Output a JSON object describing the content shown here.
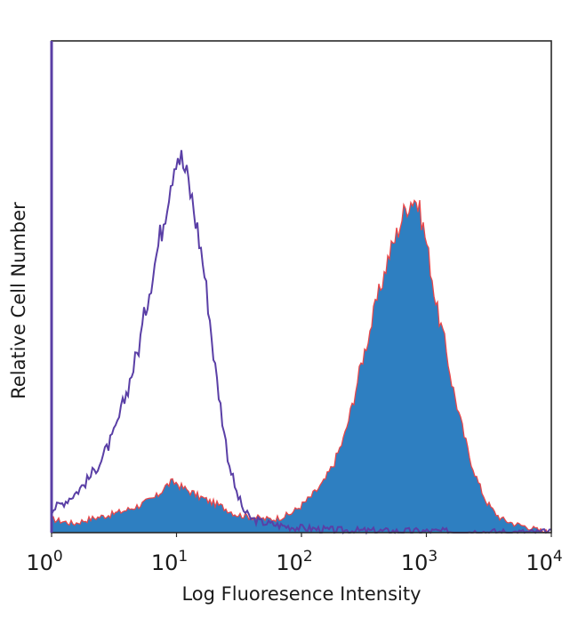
{
  "chart_data": {
    "type": "area",
    "title": "",
    "xlabel": "Log Fluoresence Intensity",
    "ylabel": "Relative Cell Number",
    "x_scale": "log",
    "xlim": [
      1,
      10000
    ],
    "ylim": [
      0,
      100
    ],
    "grid": false,
    "legend": "none",
    "x_ticks": [
      {
        "value": 1,
        "base": "10",
        "exp": "0"
      },
      {
        "value": 10,
        "base": "10",
        "exp": "1"
      },
      {
        "value": 100,
        "base": "10",
        "exp": "2"
      },
      {
        "value": 1000,
        "base": "10",
        "exp": "3"
      },
      {
        "value": 10000,
        "base": "10",
        "exp": "4"
      }
    ],
    "series": [
      {
        "style": "outline",
        "color": "#5a3fa6",
        "x": [
          1,
          1.3,
          1.6,
          2,
          2.5,
          3.2,
          4,
          5,
          6,
          7,
          8,
          9,
          10,
          11,
          12.5,
          14,
          16,
          18,
          20,
          23,
          26,
          30,
          35,
          40,
          50,
          60,
          70,
          85,
          100,
          130,
          160,
          200,
          300,
          500,
          1000,
          2000,
          5000,
          10000
        ],
        "y": [
          5,
          7,
          9,
          12,
          16,
          22,
          31,
          41,
          53,
          62,
          70,
          78,
          84,
          82,
          77,
          70,
          61,
          50,
          38,
          26,
          16,
          9,
          4.5,
          3,
          2.2,
          1.8,
          1.5,
          1.2,
          1,
          0.8,
          0.6,
          0.5,
          0.4,
          0.3,
          0.3,
          0.2,
          0.1,
          0
        ]
      },
      {
        "style": "filled",
        "color": "#2e7fc1",
        "edge_color": "#e8474a",
        "x": [
          1,
          1.5,
          2,
          3,
          4,
          5,
          6,
          7,
          8,
          9,
          10,
          11,
          13,
          15,
          18,
          22,
          26,
          30,
          40,
          50,
          60,
          70,
          80,
          90,
          100,
          120,
          150,
          180,
          220,
          260,
          300,
          350,
          400,
          450,
          500,
          550,
          600,
          650,
          700,
          750,
          800,
          850,
          900,
          950,
          1000,
          1100,
          1200,
          1400,
          1600,
          1900,
          2200,
          2600,
          3000,
          3500,
          4000,
          5000,
          6000,
          7000,
          8000,
          10000
        ],
        "y": [
          3,
          2,
          3,
          4,
          5,
          6,
          7,
          8,
          10,
          11,
          11,
          10,
          9,
          8,
          7,
          6,
          5,
          4,
          3.5,
          3,
          3,
          3.5,
          4,
          5,
          6,
          8,
          11,
          15,
          21,
          29,
          37,
          44,
          51,
          56,
          61,
          64,
          67,
          70,
          72,
          73,
          74,
          72,
          70,
          67,
          64,
          57,
          50,
          42,
          33,
          24,
          17,
          11,
          7,
          4.5,
          3,
          2,
          1.5,
          1,
          0.5,
          0
        ]
      }
    ]
  }
}
